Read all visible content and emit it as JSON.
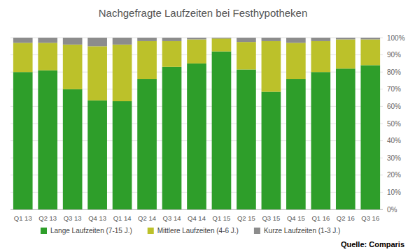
{
  "chart_data": {
    "type": "bar",
    "title": "Nachgefragte Laufzeiten bei Festhypotheken",
    "source": "Quelle: Comparis",
    "categories": [
      "Q1 13",
      "Q2 13",
      "Q3 13",
      "Q4 13",
      "Q1 14",
      "Q2 14",
      "Q3 14",
      "Q4 14",
      "Q1 15",
      "Q2 15",
      "Q3 15",
      "Q4 15",
      "Q1 16",
      "Q2 16",
      "Q3 16"
    ],
    "series": [
      {
        "name": "Lange Laufzeiten (7-15 J.)",
        "color": "#2e9e2a",
        "values": [
          80,
          81,
          70,
          63.5,
          63,
          76,
          83,
          85,
          92,
          81.5,
          68.5,
          76,
          80,
          82,
          84
        ]
      },
      {
        "name": "Mittlere Laufzeiten (4-6 J.)",
        "color": "#bcc12a",
        "values": [
          17,
          16,
          26,
          31.5,
          33,
          22,
          15,
          14,
          7.5,
          16,
          29.5,
          21,
          18,
          17,
          15
        ]
      },
      {
        "name": "Kurze Laufzeiten (1-3 J.)",
        "color": "#8c8c8c",
        "values": [
          3,
          3,
          4,
          5,
          4,
          2,
          2,
          1,
          0.5,
          2.5,
          2,
          3,
          2,
          1,
          1
        ]
      }
    ],
    "stacked": true,
    "ylim": [
      0,
      100
    ],
    "yticks": [
      {
        "value": 0,
        "label": "0%"
      },
      {
        "value": 10,
        "label": "10%"
      },
      {
        "value": 20,
        "label": "20%"
      },
      {
        "value": 30,
        "label": "30%"
      },
      {
        "value": 40,
        "label": "40%"
      },
      {
        "value": 50,
        "label": "50%"
      },
      {
        "value": 60,
        "label": "60%"
      },
      {
        "value": 70,
        "label": "70%"
      },
      {
        "value": 80,
        "label": "80%"
      },
      {
        "value": 90,
        "label": "90%"
      },
      {
        "value": 100,
        "label": "100%"
      }
    ],
    "grid": true,
    "legend": "bottom"
  }
}
